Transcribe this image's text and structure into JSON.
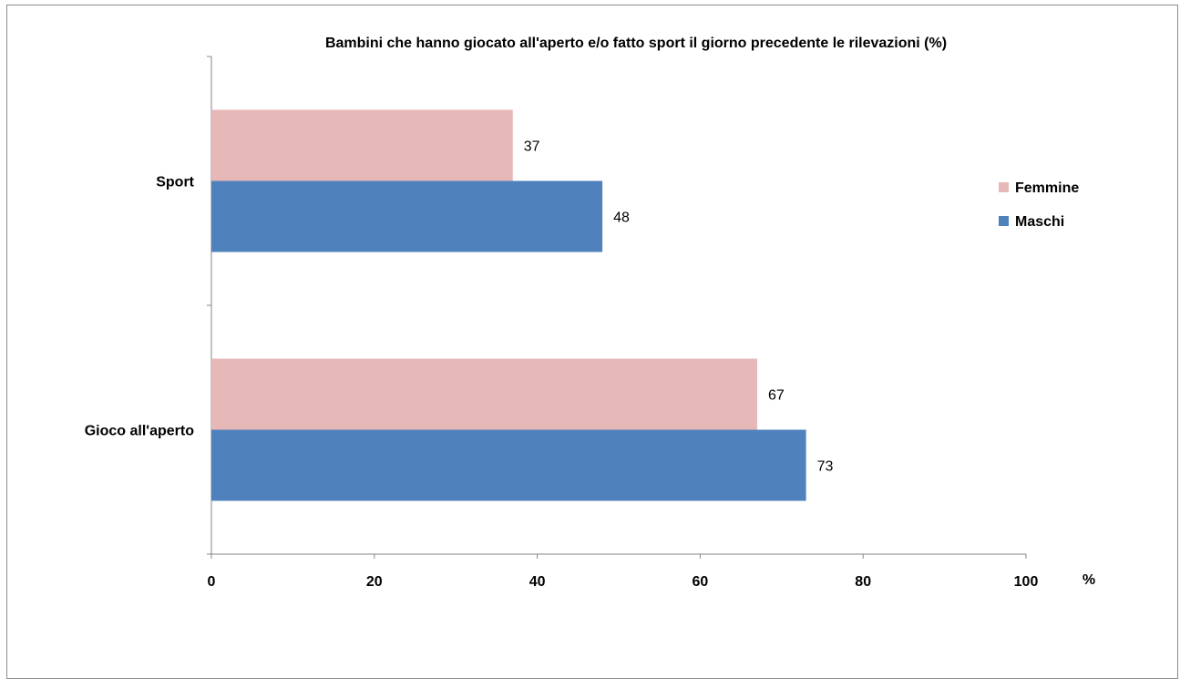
{
  "chart_data": {
    "type": "bar",
    "orientation": "horizontal",
    "title": "Bambini  che hanno giocato all'aperto e/o fatto sport il giorno precedente le rilevazioni (%)",
    "categories": [
      "Sport",
      "Gioco all'aperto"
    ],
    "series": [
      {
        "name": "Femmine",
        "values": [
          37,
          67
        ],
        "color": "#e6b9b8"
      },
      {
        "name": "Maschi",
        "values": [
          48,
          73
        ],
        "color": "#4f81bd"
      }
    ],
    "xlim": [
      0,
      100
    ],
    "x_ticks": [
      "0",
      "20",
      "40",
      "60",
      "80",
      "100"
    ],
    "xlabel": "%",
    "ylabel": "",
    "grid": false,
    "legend_position": "right"
  }
}
